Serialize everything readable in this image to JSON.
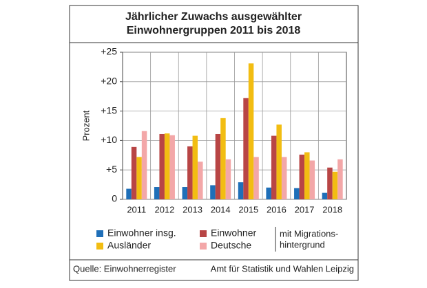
{
  "chart_data": {
    "type": "bar",
    "title": [
      "Jährlicher Zuwachs ausgewählter",
      "Einwohnergruppen 2011 bis 2018"
    ],
    "y_label": "Prozent",
    "categories": [
      "2011",
      "2012",
      "2013",
      "2014",
      "2015",
      "2016",
      "2017",
      "2018"
    ],
    "series": [
      {
        "name": "Einwohner insg.",
        "color": "#1f6fb8",
        "values": [
          1.8,
          2.1,
          2.1,
          2.4,
          2.9,
          2.0,
          1.9,
          1.1
        ]
      },
      {
        "name": "Einwohner",
        "color": "#b84545",
        "values": [
          8.9,
          11.1,
          9.0,
          11.1,
          17.2,
          10.8,
          7.6,
          5.4
        ]
      },
      {
        "name": "Ausländer",
        "color": "#f2bd12",
        "values": [
          7.2,
          11.2,
          10.8,
          13.8,
          23.1,
          12.7,
          8.0,
          4.7
        ]
      },
      {
        "name": "Deutsche",
        "color": "#f3a7a8",
        "values": [
          11.6,
          10.9,
          6.4,
          6.8,
          7.2,
          7.2,
          6.6,
          6.8
        ]
      }
    ],
    "ylim": [
      0,
      25
    ],
    "yticks": [
      0,
      {
        "value": 5,
        "label": "+5"
      },
      {
        "value": 10,
        "label": "+10"
      },
      {
        "value": 15,
        "label": "+15"
      },
      {
        "value": 20,
        "label": "+20"
      },
      {
        "value": 25,
        "label": "+25"
      }
    ],
    "grid": true,
    "annotation": [
      "mit Migrations-",
      "hintergrund"
    ],
    "source": "Quelle: Einwohnerregister",
    "publisher": "Amt für Statistik und Wahlen Leipzig"
  }
}
